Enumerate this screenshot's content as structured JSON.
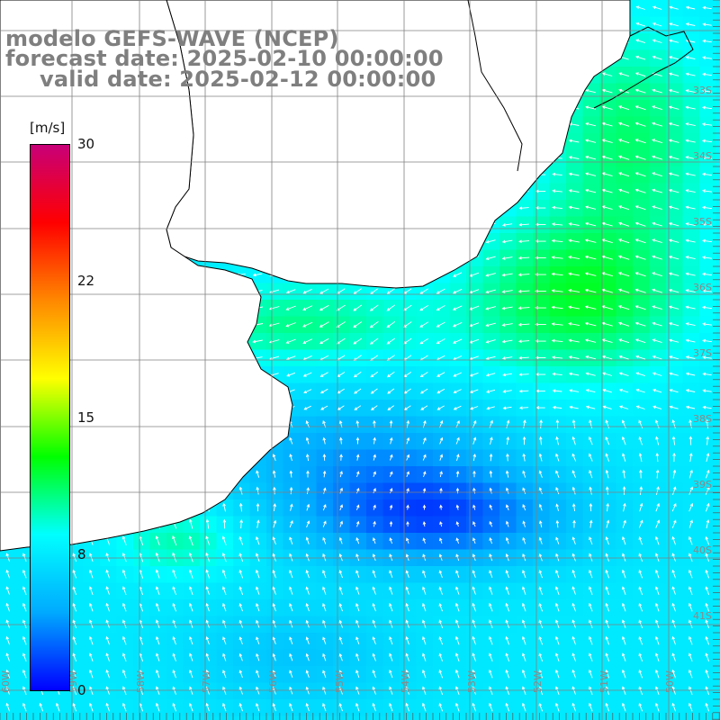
{
  "header": {
    "model": "modelo GEFS-WAVE (NCEP)",
    "forecast": "forecast date: 2025-02-10 00:00:00",
    "valid": "valid date: 2025-02-12 00:00:00"
  },
  "colorbar": {
    "units": "[m/s]",
    "min": 0,
    "max": 30,
    "ticks": [
      "30",
      "22",
      "15",
      "8",
      "0"
    ],
    "colors": [
      "#0000ff",
      "#00aaff",
      "#00ffff",
      "#00ff00",
      "#ffff00",
      "#ff8800",
      "#ff0000",
      "#c80078"
    ]
  },
  "map": {
    "background": "#ffffff",
    "land_color": "#ffffff",
    "coastline_color": "#000000",
    "grid_color": "#808080",
    "latitude_labels": [
      "33S",
      "34S",
      "35S",
      "36S",
      "37S",
      "38S",
      "39S",
      "40S",
      "41S"
    ],
    "longitude_labels": [
      "60W",
      "59W",
      "58W",
      "57W",
      "56W",
      "55W",
      "54W",
      "53W",
      "52W",
      "51W",
      "50W"
    ],
    "field": "wind speed with direction arrows",
    "regions": [
      {
        "name": "coastal southeast strip",
        "speed": 11
      },
      {
        "name": "rio de la plata estuary",
        "speed": 10
      },
      {
        "name": "open ocean northeast",
        "speed": 12
      },
      {
        "name": "central low-wind band",
        "speed": 3
      },
      {
        "name": "southern shelf",
        "speed": 7
      }
    ]
  }
}
